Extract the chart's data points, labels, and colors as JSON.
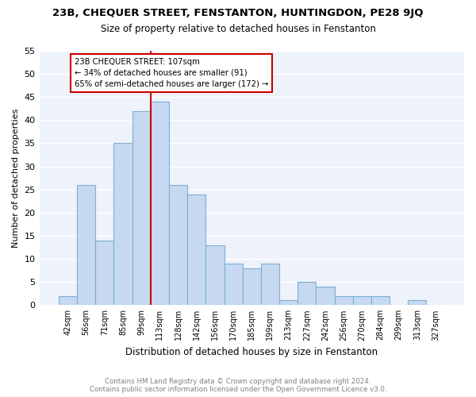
{
  "title": "23B, CHEQUER STREET, FENSTANTON, HUNTINGDON, PE28 9JQ",
  "subtitle": "Size of property relative to detached houses in Fenstanton",
  "xlabel": "Distribution of detached houses by size in Fenstanton",
  "ylabel": "Number of detached properties",
  "bin_labels": [
    "42sqm",
    "56sqm",
    "71sqm",
    "85sqm",
    "99sqm",
    "113sqm",
    "128sqm",
    "142sqm",
    "156sqm",
    "170sqm",
    "185sqm",
    "199sqm",
    "213sqm",
    "227sqm",
    "242sqm",
    "256sqm",
    "270sqm",
    "284sqm",
    "299sqm",
    "313sqm",
    "327sqm"
  ],
  "bar_heights": [
    2,
    26,
    14,
    35,
    42,
    44,
    26,
    24,
    13,
    9,
    8,
    9,
    1,
    5,
    4,
    2,
    2,
    2,
    0,
    1,
    0
  ],
  "bar_color": "#c6d9f0",
  "bar_edge_color": "#7bafd4",
  "vline_x_idx": 5,
  "vline_color": "#cc0000",
  "annotation_line1": "23B CHEQUER STREET: 107sqm",
  "annotation_line2": "← 34% of detached houses are smaller (91)",
  "annotation_line3": "65% of semi-detached houses are larger (172) →",
  "annotation_box_edge": "#cc0000",
  "ylim": [
    0,
    55
  ],
  "yticks": [
    0,
    5,
    10,
    15,
    20,
    25,
    30,
    35,
    40,
    45,
    50,
    55
  ],
  "footer_line1": "Contains HM Land Registry data © Crown copyright and database right 2024.",
  "footer_line2": "Contains public sector information licensed under the Open Government Licence v3.0.",
  "bg_color": "#eef2fb"
}
